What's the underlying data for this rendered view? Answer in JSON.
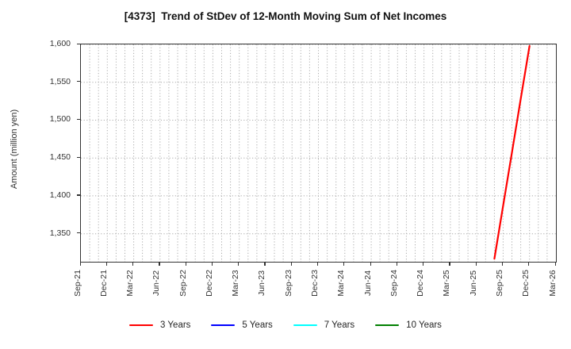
{
  "title": "[4373]  Trend of StDev of 12-Month Moving Sum of Net Incomes",
  "y_axis": {
    "label": "Amount (million yen)",
    "ticks": [
      {
        "label": "1,600",
        "value": 1600
      },
      {
        "label": "1,550",
        "value": 1550
      },
      {
        "label": "1,500",
        "value": 1500
      },
      {
        "label": "1,450",
        "value": 1450
      },
      {
        "label": "1,400",
        "value": 1400
      },
      {
        "label": "1,350",
        "value": 1350
      }
    ]
  },
  "x_axis": {
    "tick_labels": [
      "Sep-21",
      "Dec-21",
      "Mar-22",
      "Jun-22",
      "Sep-22",
      "Dec-22",
      "Mar-23",
      "Jun-23",
      "Sep-23",
      "Dec-23",
      "Mar-24",
      "Jun-24",
      "Sep-24",
      "Dec-24",
      "Mar-25",
      "Jun-25",
      "Sep-25",
      "Dec-25",
      "Mar-26"
    ],
    "months_per_tick": 3
  },
  "legend": {
    "items": [
      {
        "label": "3 Years",
        "color": "#ff0000"
      },
      {
        "label": "5 Years",
        "color": "#0000ff"
      },
      {
        "label": "7 Years",
        "color": "#00ffff"
      },
      {
        "label": "10 Years",
        "color": "#008000"
      }
    ]
  },
  "chart_data": {
    "type": "line",
    "title": "[4373]  Trend of StDev of 12-Month Moving Sum of Net Incomes",
    "xlabel": "",
    "ylabel": "Amount (million yen)",
    "x_domain": [
      "Sep-21",
      "Mar-26"
    ],
    "x_tick_labels": [
      "Sep-21",
      "Dec-21",
      "Mar-22",
      "Jun-22",
      "Sep-22",
      "Dec-22",
      "Mar-23",
      "Jun-23",
      "Sep-23",
      "Dec-23",
      "Mar-24",
      "Jun-24",
      "Sep-24",
      "Dec-24",
      "Mar-25",
      "Jun-25",
      "Sep-25",
      "Dec-25",
      "Mar-26"
    ],
    "ylim": [
      1313,
      1600
    ],
    "y_ticks": [
      1350,
      1400,
      1450,
      1500,
      1550,
      1600
    ],
    "grid": "dotted gray, vertical line every month, horizontal every 50",
    "legend_position": "bottom center",
    "series": [
      {
        "name": "3 Years",
        "color": "#ff0000",
        "points": [
          {
            "x": "Aug-25",
            "y": 1317
          },
          {
            "x": "Sep-25",
            "y": 1387
          },
          {
            "x": "Oct-25",
            "y": 1457
          },
          {
            "x": "Nov-25",
            "y": 1528
          },
          {
            "x": "Dec-25",
            "y": 1598
          }
        ]
      },
      {
        "name": "5 Years",
        "color": "#0000ff",
        "points": []
      },
      {
        "name": "7 Years",
        "color": "#00ffff",
        "points": []
      },
      {
        "name": "10 Years",
        "color": "#008000",
        "points": []
      }
    ]
  }
}
